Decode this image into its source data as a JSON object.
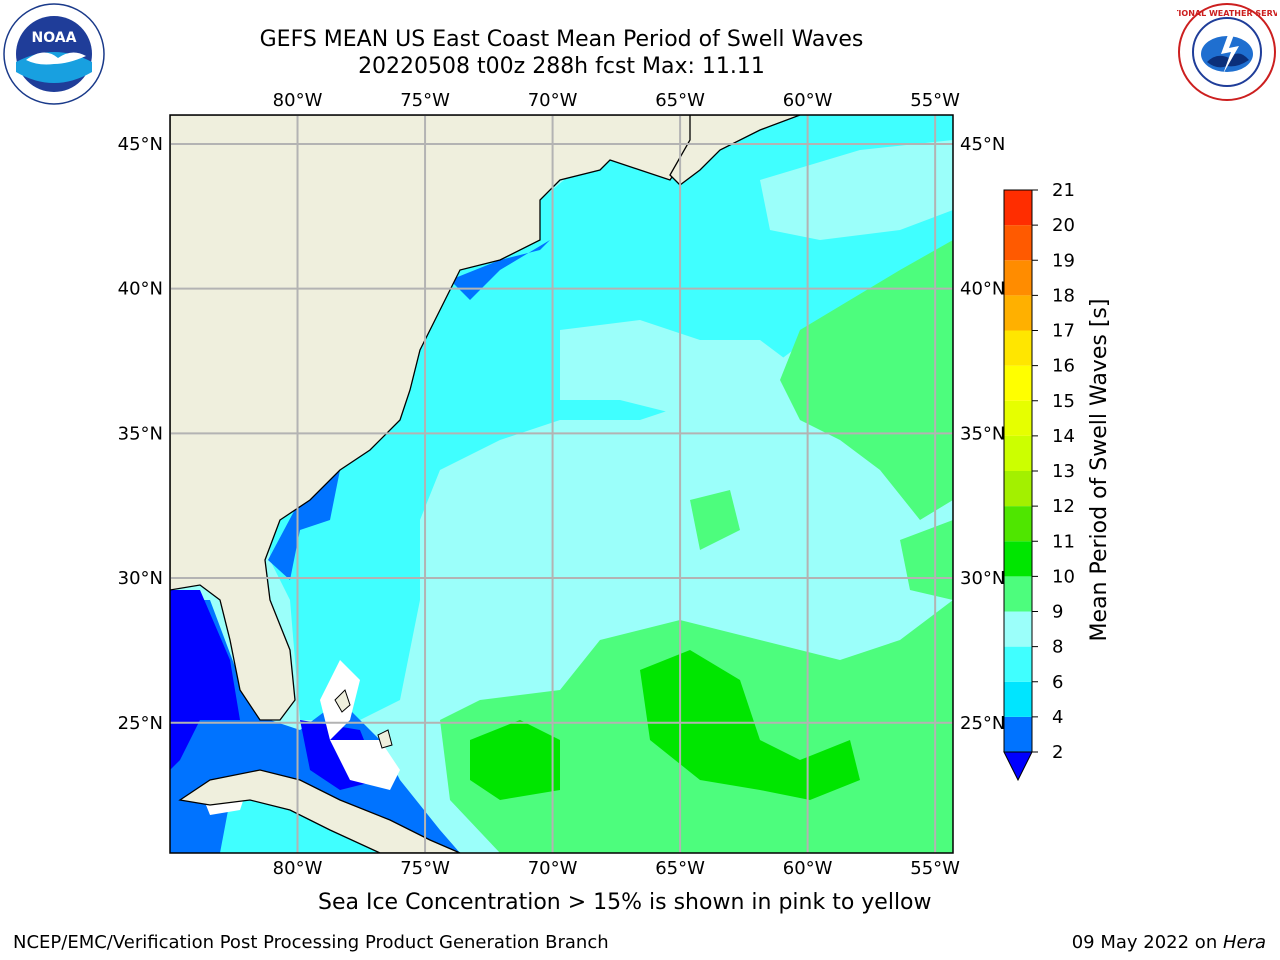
{
  "title": {
    "line1": "GEFS MEAN US East Coast Mean Period of Swell Waves",
    "line2": "20220508 t00z 288h fcst   Max: 11.11"
  },
  "logos": {
    "left": "noaa-logo",
    "left_text": "NOAA",
    "right": "nws-logo",
    "right_text": "NATIONAL WEATHER SERVICE"
  },
  "map": {
    "lon_labels": [
      "80°W",
      "75°W",
      "70°W",
      "65°W",
      "60°W",
      "55°W"
    ],
    "lat_labels": [
      "45°N",
      "40°N",
      "35°N",
      "30°N",
      "25°N"
    ],
    "lon_values": [
      -80,
      -75,
      -70,
      -65,
      -60,
      -55
    ],
    "lat_values": [
      45,
      40,
      35,
      30,
      25
    ],
    "extent": {
      "lon_min": -85,
      "lon_max": -54.3,
      "lat_min": 20.5,
      "lat_max": 46
    },
    "colors": {
      "land": "#efefdd",
      "grid": "#b3b3b3",
      "coast": "#000000",
      "white_area": "#ffffff"
    }
  },
  "colorbar": {
    "label": "Mean Period of Swell Waves [s]",
    "ticks": [
      "2",
      "4",
      "6",
      "8",
      "9",
      "10",
      "11",
      "12",
      "13",
      "14",
      "15",
      "16",
      "17",
      "18",
      "19",
      "20",
      "21"
    ],
    "colors": [
      "#0073ff",
      "#00e5ff",
      "#40ffff",
      "#9bfffa",
      "#4dfd7d",
      "#00e600",
      "#4fe600",
      "#a3f000",
      "#ccff00",
      "#e6ff00",
      "#ffff00",
      "#ffe600",
      "#ffb000",
      "#ff8c00",
      "#ff5a00",
      "#ff2d00"
    ],
    "under_color": "#0000ff"
  },
  "caption": "Sea Ice Concentration > 15% is shown in pink to yellow",
  "footer": {
    "left": "NCEP/EMC/Verification Post Processing Product Generation Branch",
    "right_date": "09 May 2022 on ",
    "right_machine": "Hera"
  }
}
